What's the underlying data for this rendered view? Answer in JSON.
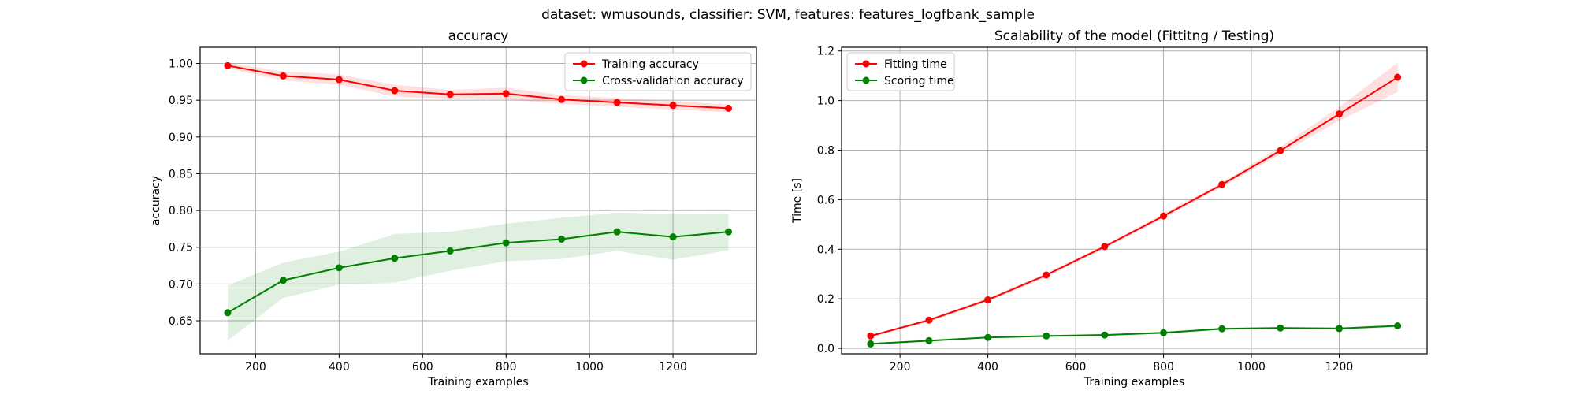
{
  "figure": {
    "suptitle": "dataset: wmusounds, classifier: SVM, features: features_logfbank_sample"
  },
  "chart_data": [
    {
      "type": "line",
      "title": "accuracy",
      "xlabel": "Training examples",
      "ylabel": "accuracy",
      "xlim": [
        67,
        1400
      ],
      "ylim": [
        0.605,
        1.022
      ],
      "xticks": [
        200,
        400,
        600,
        800,
        1000,
        1200
      ],
      "yticks": [
        0.65,
        0.7,
        0.75,
        0.8,
        0.85,
        0.9,
        0.95,
        1.0
      ],
      "ytick_labels": [
        "0.65",
        "0.70",
        "0.75",
        "0.80",
        "0.85",
        "0.90",
        "0.95",
        "1.00"
      ],
      "grid": true,
      "legend": "top-right",
      "x": [
        133,
        266,
        400,
        533,
        666,
        800,
        933,
        1066,
        1200,
        1333
      ],
      "series": [
        {
          "name": "Training accuracy",
          "color": "#ff0000",
          "values": [
            0.997,
            0.983,
            0.978,
            0.963,
            0.958,
            0.959,
            0.951,
            0.947,
            0.943,
            0.939
          ],
          "band_low": [
            0.993,
            0.977,
            0.971,
            0.955,
            0.952,
            0.951,
            0.945,
            0.941,
            0.937,
            0.934
          ],
          "band_high": [
            1.001,
            0.989,
            0.985,
            0.971,
            0.964,
            0.967,
            0.957,
            0.953,
            0.949,
            0.944
          ]
        },
        {
          "name": "Cross-validation accuracy",
          "color": "#008000",
          "values": [
            0.661,
            0.705,
            0.722,
            0.735,
            0.745,
            0.756,
            0.761,
            0.771,
            0.764,
            0.771
          ],
          "band_low": [
            0.623,
            0.681,
            0.699,
            0.702,
            0.718,
            0.731,
            0.734,
            0.745,
            0.733,
            0.746
          ],
          "band_high": [
            0.698,
            0.729,
            0.744,
            0.768,
            0.771,
            0.782,
            0.79,
            0.797,
            0.795,
            0.796
          ]
        }
      ]
    },
    {
      "type": "line",
      "title": "Scalability of the model (Fittitng / Testing)",
      "xlabel": "Training examples",
      "ylabel": "Time [s]",
      "xlim": [
        67,
        1400
      ],
      "ylim": [
        -0.022,
        1.215
      ],
      "xticks": [
        200,
        400,
        600,
        800,
        1000,
        1200
      ],
      "yticks": [
        0.0,
        0.2,
        0.4,
        0.6,
        0.8,
        1.0,
        1.2
      ],
      "ytick_labels": [
        "0.0",
        "0.2",
        "0.4",
        "0.6",
        "0.8",
        "1.0",
        "1.2"
      ],
      "grid": true,
      "legend": "top-left",
      "x": [
        133,
        266,
        400,
        533,
        666,
        800,
        933,
        1066,
        1200,
        1333
      ],
      "series": [
        {
          "name": "Fitting time",
          "color": "#ff0000",
          "values": [
            0.05,
            0.114,
            0.196,
            0.296,
            0.411,
            0.534,
            0.661,
            0.798,
            0.946,
            1.094
          ],
          "band_low": [
            0.046,
            0.108,
            0.189,
            0.288,
            0.404,
            0.525,
            0.652,
            0.783,
            0.918,
            1.035
          ],
          "band_high": [
            0.054,
            0.12,
            0.203,
            0.304,
            0.418,
            0.543,
            0.67,
            0.813,
            0.974,
            1.153
          ]
        },
        {
          "name": "Scoring time",
          "color": "#008000",
          "values": [
            0.018,
            0.031,
            0.044,
            0.05,
            0.054,
            0.063,
            0.079,
            0.082,
            0.08,
            0.091
          ],
          "band_low": [
            0.016,
            0.028,
            0.041,
            0.046,
            0.05,
            0.058,
            0.074,
            0.077,
            0.075,
            0.085
          ],
          "band_high": [
            0.02,
            0.034,
            0.047,
            0.054,
            0.058,
            0.068,
            0.084,
            0.087,
            0.085,
            0.097
          ]
        }
      ]
    }
  ]
}
